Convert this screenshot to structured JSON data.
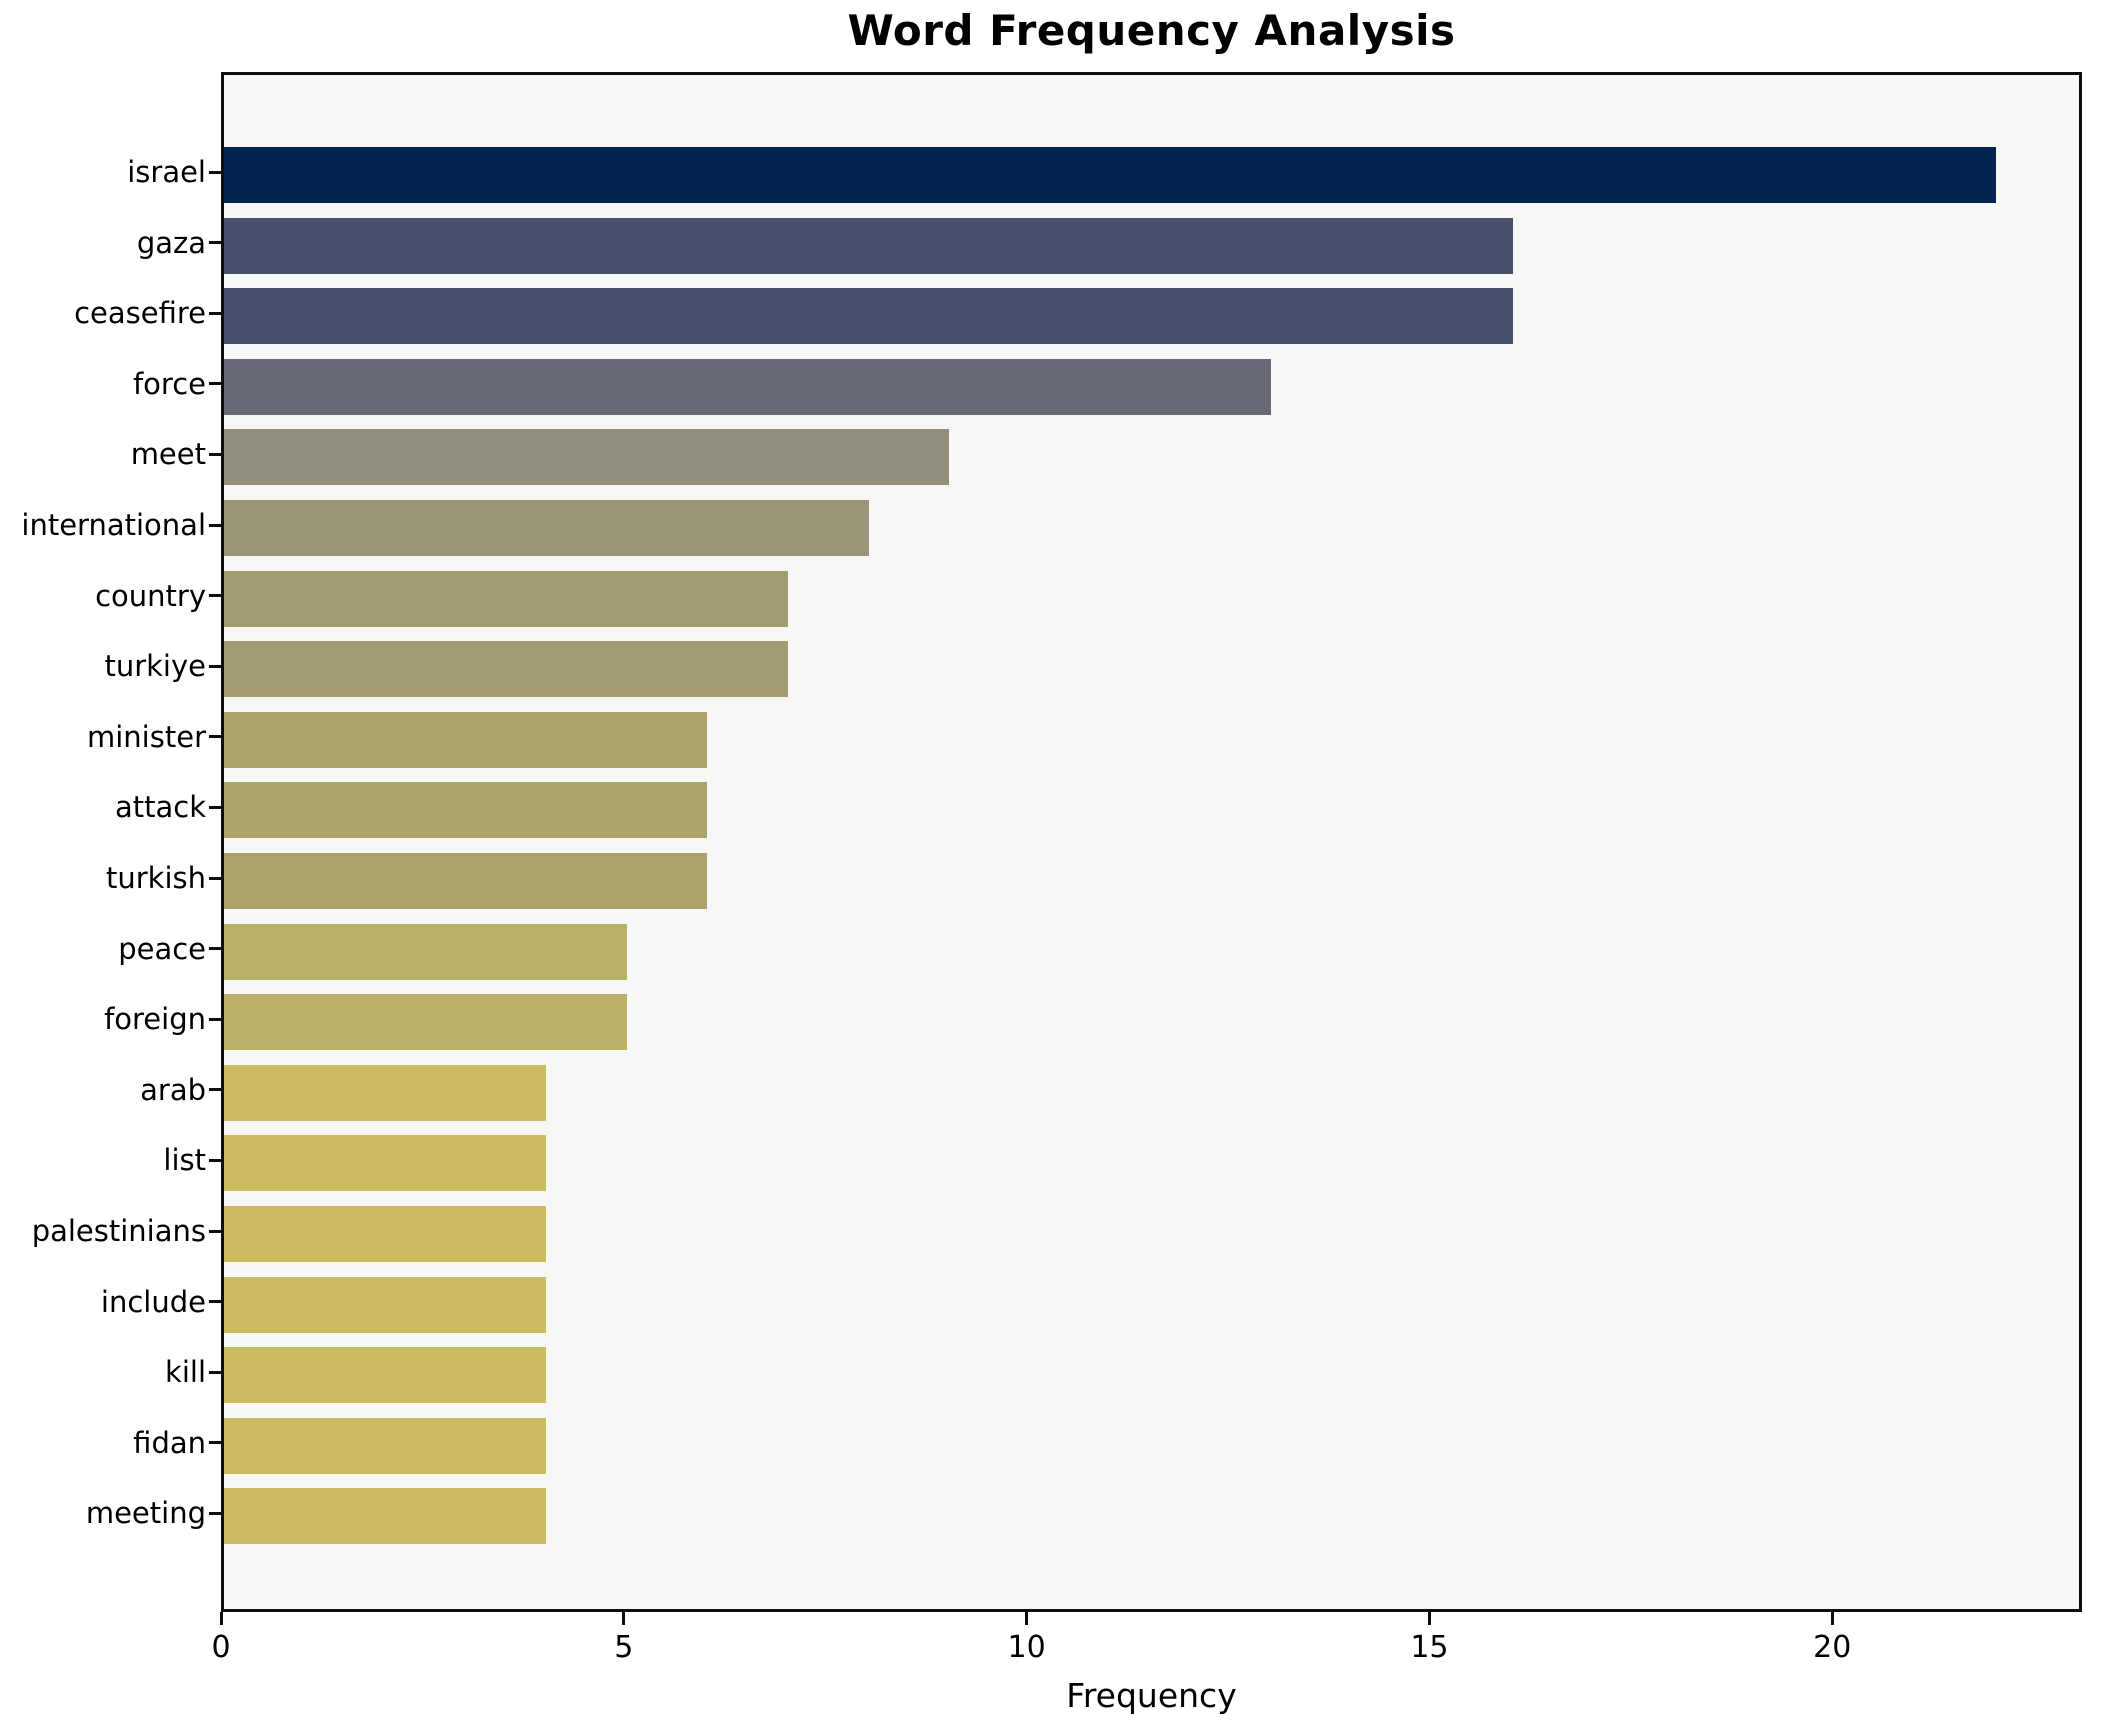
{
  "chart_data": {
    "type": "bar",
    "orientation": "horizontal",
    "title": "Word Frequency Analysis",
    "xlabel": "Frequency",
    "ylabel": "",
    "categories": [
      "israel",
      "gaza",
      "ceasefire",
      "force",
      "meet",
      "international",
      "country",
      "turkiye",
      "minister",
      "attack",
      "turkish",
      "peace",
      "foreign",
      "arab",
      "list",
      "palestinians",
      "include",
      "kill",
      "fidan",
      "meeting"
    ],
    "values": [
      22,
      16,
      16,
      13,
      9,
      8,
      7,
      7,
      6,
      6,
      6,
      5,
      5,
      4,
      4,
      4,
      4,
      4,
      4,
      4
    ],
    "bar_colors": [
      "#01234f",
      "#49516e",
      "#49516e",
      "#666a74",
      "#918e7b",
      "#9a9478",
      "#a39c71",
      "#a39c71",
      "#aba36b",
      "#aba36b",
      "#aba36b",
      "#bab066",
      "#bab066",
      "#ccbc61",
      "#ccbc61",
      "#ccbc61",
      "#ccbc61",
      "#ccbc61",
      "#ccbc61",
      "#ccbc61"
    ],
    "xticks": [
      0,
      5,
      10,
      15,
      20
    ],
    "xlim": [
      0,
      23.1
    ],
    "grid": false,
    "legend_position": "none",
    "plot_background": "#f7f7f6",
    "figure_background": "#ffffff",
    "spine_color": "#0e0e0e"
  }
}
